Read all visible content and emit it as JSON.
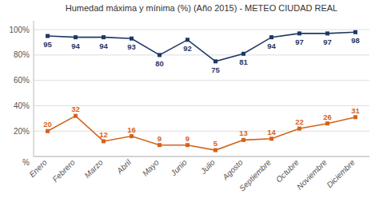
{
  "chart_data": {
    "type": "line",
    "title": "Humedad máxima y mínima (%) (Año 2015)  -  METEO  CIUDAD  REAL",
    "categories": [
      "Enero",
      "Febrero",
      "Marzo",
      "Abril",
      "Mayo",
      "Junio",
      "Julio",
      "Agosto",
      "Septiembre",
      "Octubre",
      "Noviembre",
      "Diciembre"
    ],
    "series": [
      {
        "color": "#1f3864",
        "marker": "square",
        "line_style": "solid",
        "values": [
          95,
          94,
          94,
          93,
          80,
          92,
          75,
          81,
          94,
          97,
          97,
          98
        ]
      },
      {
        "color": "#d4631a",
        "marker": "square",
        "line_style": "solid",
        "values": [
          20,
          32,
          12,
          16,
          9,
          9,
          5,
          13,
          14,
          22,
          26,
          31
        ]
      }
    ],
    "ylim": [
      0,
      107
    ],
    "yticks": [
      {
        "value": 0,
        "label": null
      },
      {
        "value": 20,
        "label": "20%"
      },
      {
        "value": 40,
        "label": "40%"
      },
      {
        "value": 60,
        "label": "60%"
      },
      {
        "value": 80,
        "label": "80%"
      },
      {
        "value": 100,
        "label": "100%"
      }
    ],
    "annotations": [
      "%"
    ],
    "grid": true,
    "data_labels": true
  }
}
